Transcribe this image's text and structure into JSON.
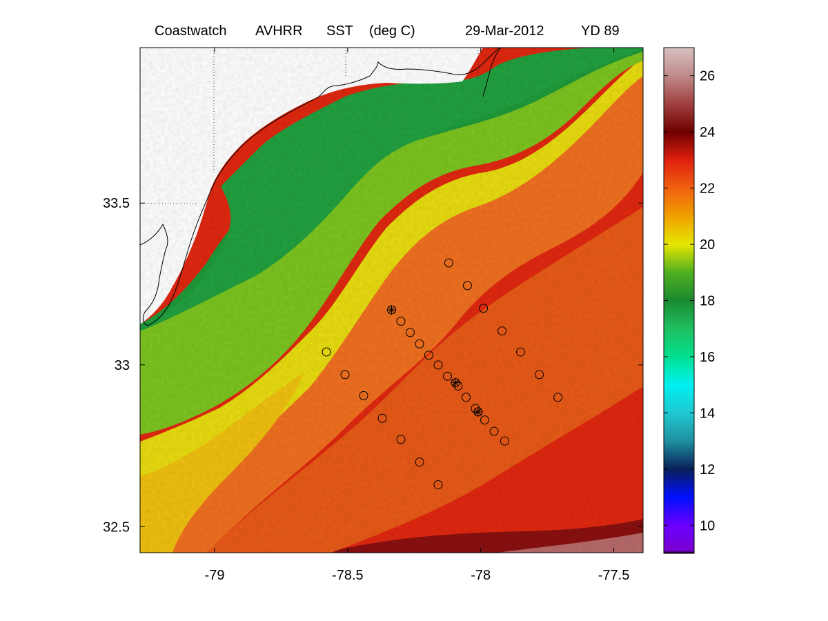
{
  "title": {
    "source": "Coastwatch",
    "sensor": "AVHRR",
    "variable": "SST",
    "units": "(deg C)",
    "date": "29-Mar-2012",
    "yearday": "YD 89"
  },
  "chart_data": {
    "type": "heatmap",
    "x_ticks": [
      "-79",
      "-78.5",
      "-78",
      "-77.5"
    ],
    "y_ticks": [
      "33.5",
      "33",
      "32.5"
    ],
    "xlim": [
      -79.28,
      -77.39
    ],
    "ylim": [
      32.42,
      33.98
    ],
    "colorbar": {
      "ticks": [
        "10",
        "12",
        "14",
        "16",
        "18",
        "20",
        "22",
        "24",
        "26"
      ],
      "range": [
        9,
        27
      ],
      "stops": [
        {
          "v": 9.0,
          "color": "#000000"
        },
        {
          "v": 9.1,
          "color": "#7a00d0"
        },
        {
          "v": 10.0,
          "color": "#6a00ff"
        },
        {
          "v": 11.0,
          "color": "#0010ff"
        },
        {
          "v": 12.0,
          "color": "#0a1f5a"
        },
        {
          "v": 13.0,
          "color": "#1e90a0"
        },
        {
          "v": 14.0,
          "color": "#20c8d0"
        },
        {
          "v": 15.0,
          "color": "#00f0f0"
        },
        {
          "v": 16.0,
          "color": "#00e090"
        },
        {
          "v": 17.0,
          "color": "#20c060"
        },
        {
          "v": 18.0,
          "color": "#1a8a30"
        },
        {
          "v": 19.0,
          "color": "#50b020"
        },
        {
          "v": 20.0,
          "color": "#e6e600"
        },
        {
          "v": 21.0,
          "color": "#f0a000"
        },
        {
          "v": 22.0,
          "color": "#f06010"
        },
        {
          "v": 23.0,
          "color": "#e02010"
        },
        {
          "v": 24.0,
          "color": "#700000"
        },
        {
          "v": 25.0,
          "color": "#a04040"
        },
        {
          "v": 26.0,
          "color": "#c08a8a"
        },
        {
          "v": 27.0,
          "color": "#d8c0c0"
        }
      ]
    },
    "stations": [
      {
        "lon": -78.12,
        "lat": 33.315
      },
      {
        "lon": -78.05,
        "lat": 33.245
      },
      {
        "lon": -77.99,
        "lat": 33.175
      },
      {
        "lon": -77.92,
        "lat": 33.105
      },
      {
        "lon": -77.85,
        "lat": 33.04
      },
      {
        "lon": -77.78,
        "lat": 32.97
      },
      {
        "lon": -77.71,
        "lat": 32.9
      },
      {
        "lon": -78.335,
        "lat": 33.17,
        "cast": true
      },
      {
        "lon": -78.3,
        "lat": 33.135
      },
      {
        "lon": -78.265,
        "lat": 33.1
      },
      {
        "lon": -78.23,
        "lat": 33.065
      },
      {
        "lon": -78.195,
        "lat": 33.03
      },
      {
        "lon": -78.16,
        "lat": 33.0
      },
      {
        "lon": -78.125,
        "lat": 32.965
      },
      {
        "lon": -78.095,
        "lat": 32.945,
        "cast": true
      },
      {
        "lon": -78.085,
        "lat": 32.935
      },
      {
        "lon": -78.055,
        "lat": 32.9
      },
      {
        "lon": -78.02,
        "lat": 32.865
      },
      {
        "lon": -78.01,
        "lat": 32.855,
        "cast": true
      },
      {
        "lon": -77.985,
        "lat": 32.83
      },
      {
        "lon": -77.95,
        "lat": 32.795
      },
      {
        "lon": -77.91,
        "lat": 32.765
      },
      {
        "lon": -78.58,
        "lat": 33.04
      },
      {
        "lon": -78.51,
        "lat": 32.97
      },
      {
        "lon": -78.44,
        "lat": 32.905
      },
      {
        "lon": -78.37,
        "lat": 32.835
      },
      {
        "lon": -78.3,
        "lat": 32.77
      },
      {
        "lon": -78.23,
        "lat": 32.7
      },
      {
        "lon": -78.16,
        "lat": 32.63
      }
    ]
  }
}
